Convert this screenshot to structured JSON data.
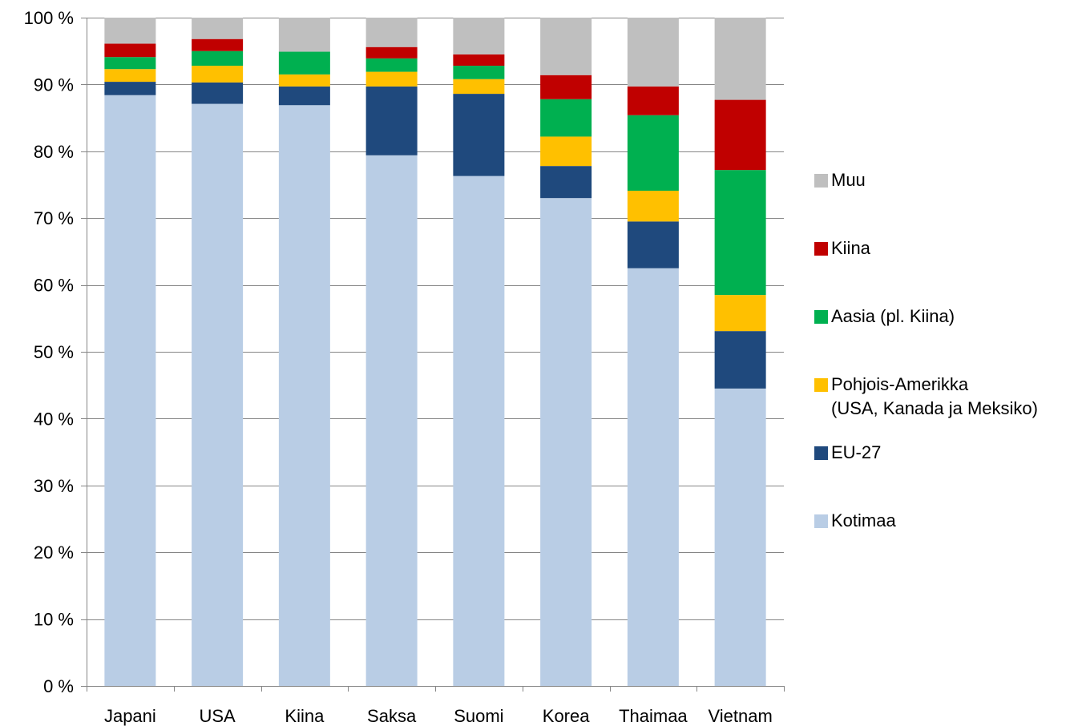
{
  "chart_data": {
    "type": "bar",
    "stacked": true,
    "categories": [
      "Japani",
      "USA",
      "Kiina",
      "Saksa",
      "Suomi",
      "Korea",
      "Thaimaa",
      "Vietnam"
    ],
    "ylim": [
      0,
      100
    ],
    "yticks": [
      0,
      10,
      20,
      30,
      40,
      50,
      60,
      70,
      80,
      90,
      100
    ],
    "ytick_labels": [
      "0 %",
      "10 %",
      "20 %",
      "30 %",
      "40 %",
      "50 %",
      "60 %",
      "70 %",
      "80 %",
      "90 %",
      "100 %"
    ],
    "grid": true,
    "legend_position": "right",
    "series": [
      {
        "name": "Kotimaa",
        "color": "#b9cde5",
        "values": [
          88.4,
          87.1,
          86.9,
          79.4,
          76.3,
          73.0,
          62.5,
          44.5
        ]
      },
      {
        "name": "EU-27",
        "color": "#1f497d",
        "values": [
          2.0,
          3.2,
          2.8,
          10.3,
          12.3,
          4.8,
          7.0,
          8.6
        ]
      },
      {
        "name": "Pohjois-Amerikka\n(USA, Kanada ja Meksiko)",
        "color": "#ffc000",
        "values": [
          1.9,
          2.5,
          1.8,
          2.2,
          2.2,
          4.4,
          4.6,
          5.4
        ]
      },
      {
        "name": "Aasia (pl. Kiina)",
        "color": "#00b050",
        "values": [
          1.8,
          2.2,
          3.4,
          2.0,
          2.0,
          5.6,
          11.3,
          18.7
        ]
      },
      {
        "name": "Kiina",
        "color": "#c00000",
        "values": [
          2.0,
          1.8,
          0,
          1.7,
          1.7,
          3.6,
          4.3,
          10.5
        ]
      },
      {
        "name": "Muu",
        "color": "#bfbfbf",
        "values": [
          3.9,
          3.2,
          5.1,
          4.4,
          5.5,
          8.6,
          10.3,
          12.3
        ]
      }
    ]
  }
}
